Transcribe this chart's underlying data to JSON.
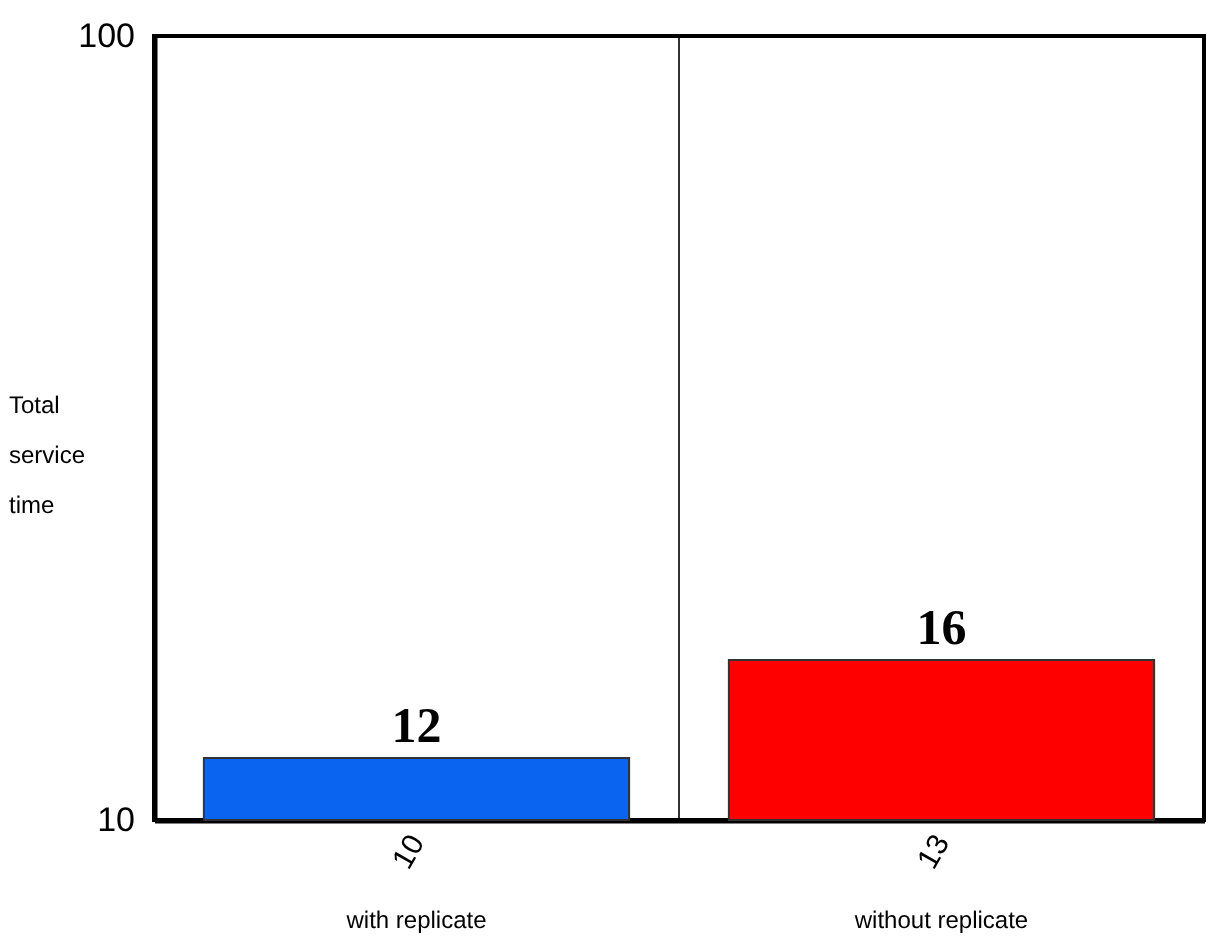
{
  "chart_data": {
    "type": "bar",
    "ylabel": "Total service time",
    "categories": [
      "10",
      "13"
    ],
    "values": [
      12,
      16
    ],
    "colors": [
      "#0a64f0",
      "#ff0000"
    ],
    "ylim": [
      10,
      100
    ],
    "yticks": [
      10,
      100
    ],
    "log": "y",
    "grid": "x",
    "data_labels": true,
    "annotations": [
      "with replicate",
      "without replicate"
    ]
  }
}
